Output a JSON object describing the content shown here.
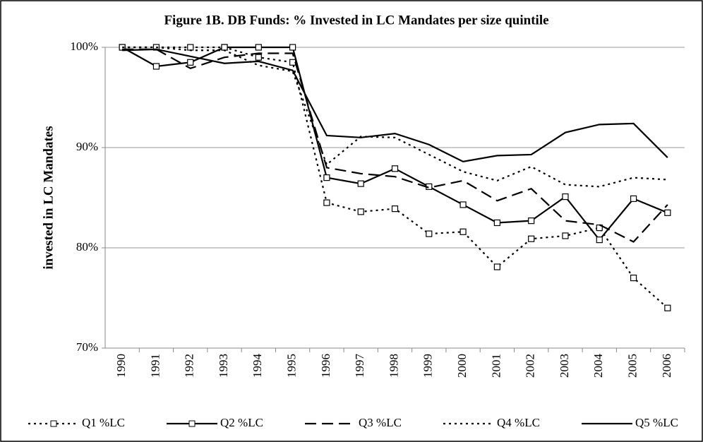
{
  "chart_data": {
    "type": "line",
    "title": "Figure 1B. DB Funds: % Invested in LC Mandates per size quintile",
    "y_label": "invested in LC Mandates",
    "categories": [
      "1990",
      "1991",
      "1992",
      "1993",
      "1994",
      "1995",
      "1996",
      "1997",
      "1998",
      "1999",
      "2000",
      "2001",
      "2002",
      "2003",
      "2004",
      "2005",
      "2006"
    ],
    "ylim": [
      70,
      100
    ],
    "yticks": [
      {
        "value": 70,
        "label": "70%"
      },
      {
        "value": 80,
        "label": "80%"
      },
      {
        "value": 90,
        "label": "90%"
      },
      {
        "value": 100,
        "label": "100%"
      }
    ],
    "grid": true,
    "legend": "bottom",
    "series": [
      {
        "name": "Q1 %LC",
        "color": "#000000",
        "line_style": "dotted",
        "marker": "square",
        "values": [
          100,
          100,
          100,
          100,
          99.0,
          98.5,
          84.5,
          83.6,
          83.9,
          81.4,
          81.6,
          78.1,
          80.9,
          81.2,
          82.0,
          77.0,
          74.0
        ]
      },
      {
        "name": "Q2 %LC",
        "color": "#000000",
        "line_style": "solid",
        "marker": "square",
        "values": [
          100,
          98.1,
          98.5,
          100,
          100,
          100,
          87.0,
          86.4,
          87.9,
          86.1,
          84.3,
          82.5,
          82.7,
          85.1,
          80.8,
          84.9,
          83.5
        ]
      },
      {
        "name": "Q3 %LC",
        "color": "#000000",
        "line_style": "dashed",
        "marker": "none",
        "values": [
          99.8,
          99.8,
          97.9,
          99.0,
          99.4,
          99.4,
          88.0,
          87.4,
          87.1,
          86.0,
          86.7,
          84.7,
          85.9,
          82.7,
          82.3,
          80.6,
          84.3
        ]
      },
      {
        "name": "Q4 %LC",
        "color": "#000000",
        "line_style": "dotted",
        "marker": "none",
        "values": [
          100,
          100,
          99.7,
          99.7,
          98.2,
          97.6,
          88.3,
          91.1,
          91.0,
          89.3,
          87.6,
          86.7,
          88.1,
          86.3,
          86.1,
          87.0,
          86.8
        ]
      },
      {
        "name": "Q5 %LC",
        "color": "#000000",
        "line_style": "solid",
        "marker": "none",
        "values": [
          99.7,
          99.8,
          99.1,
          98.4,
          98.6,
          97.7,
          91.2,
          91.0,
          91.4,
          90.3,
          88.6,
          89.2,
          89.3,
          91.5,
          92.3,
          92.4,
          89.0
        ]
      }
    ]
  }
}
